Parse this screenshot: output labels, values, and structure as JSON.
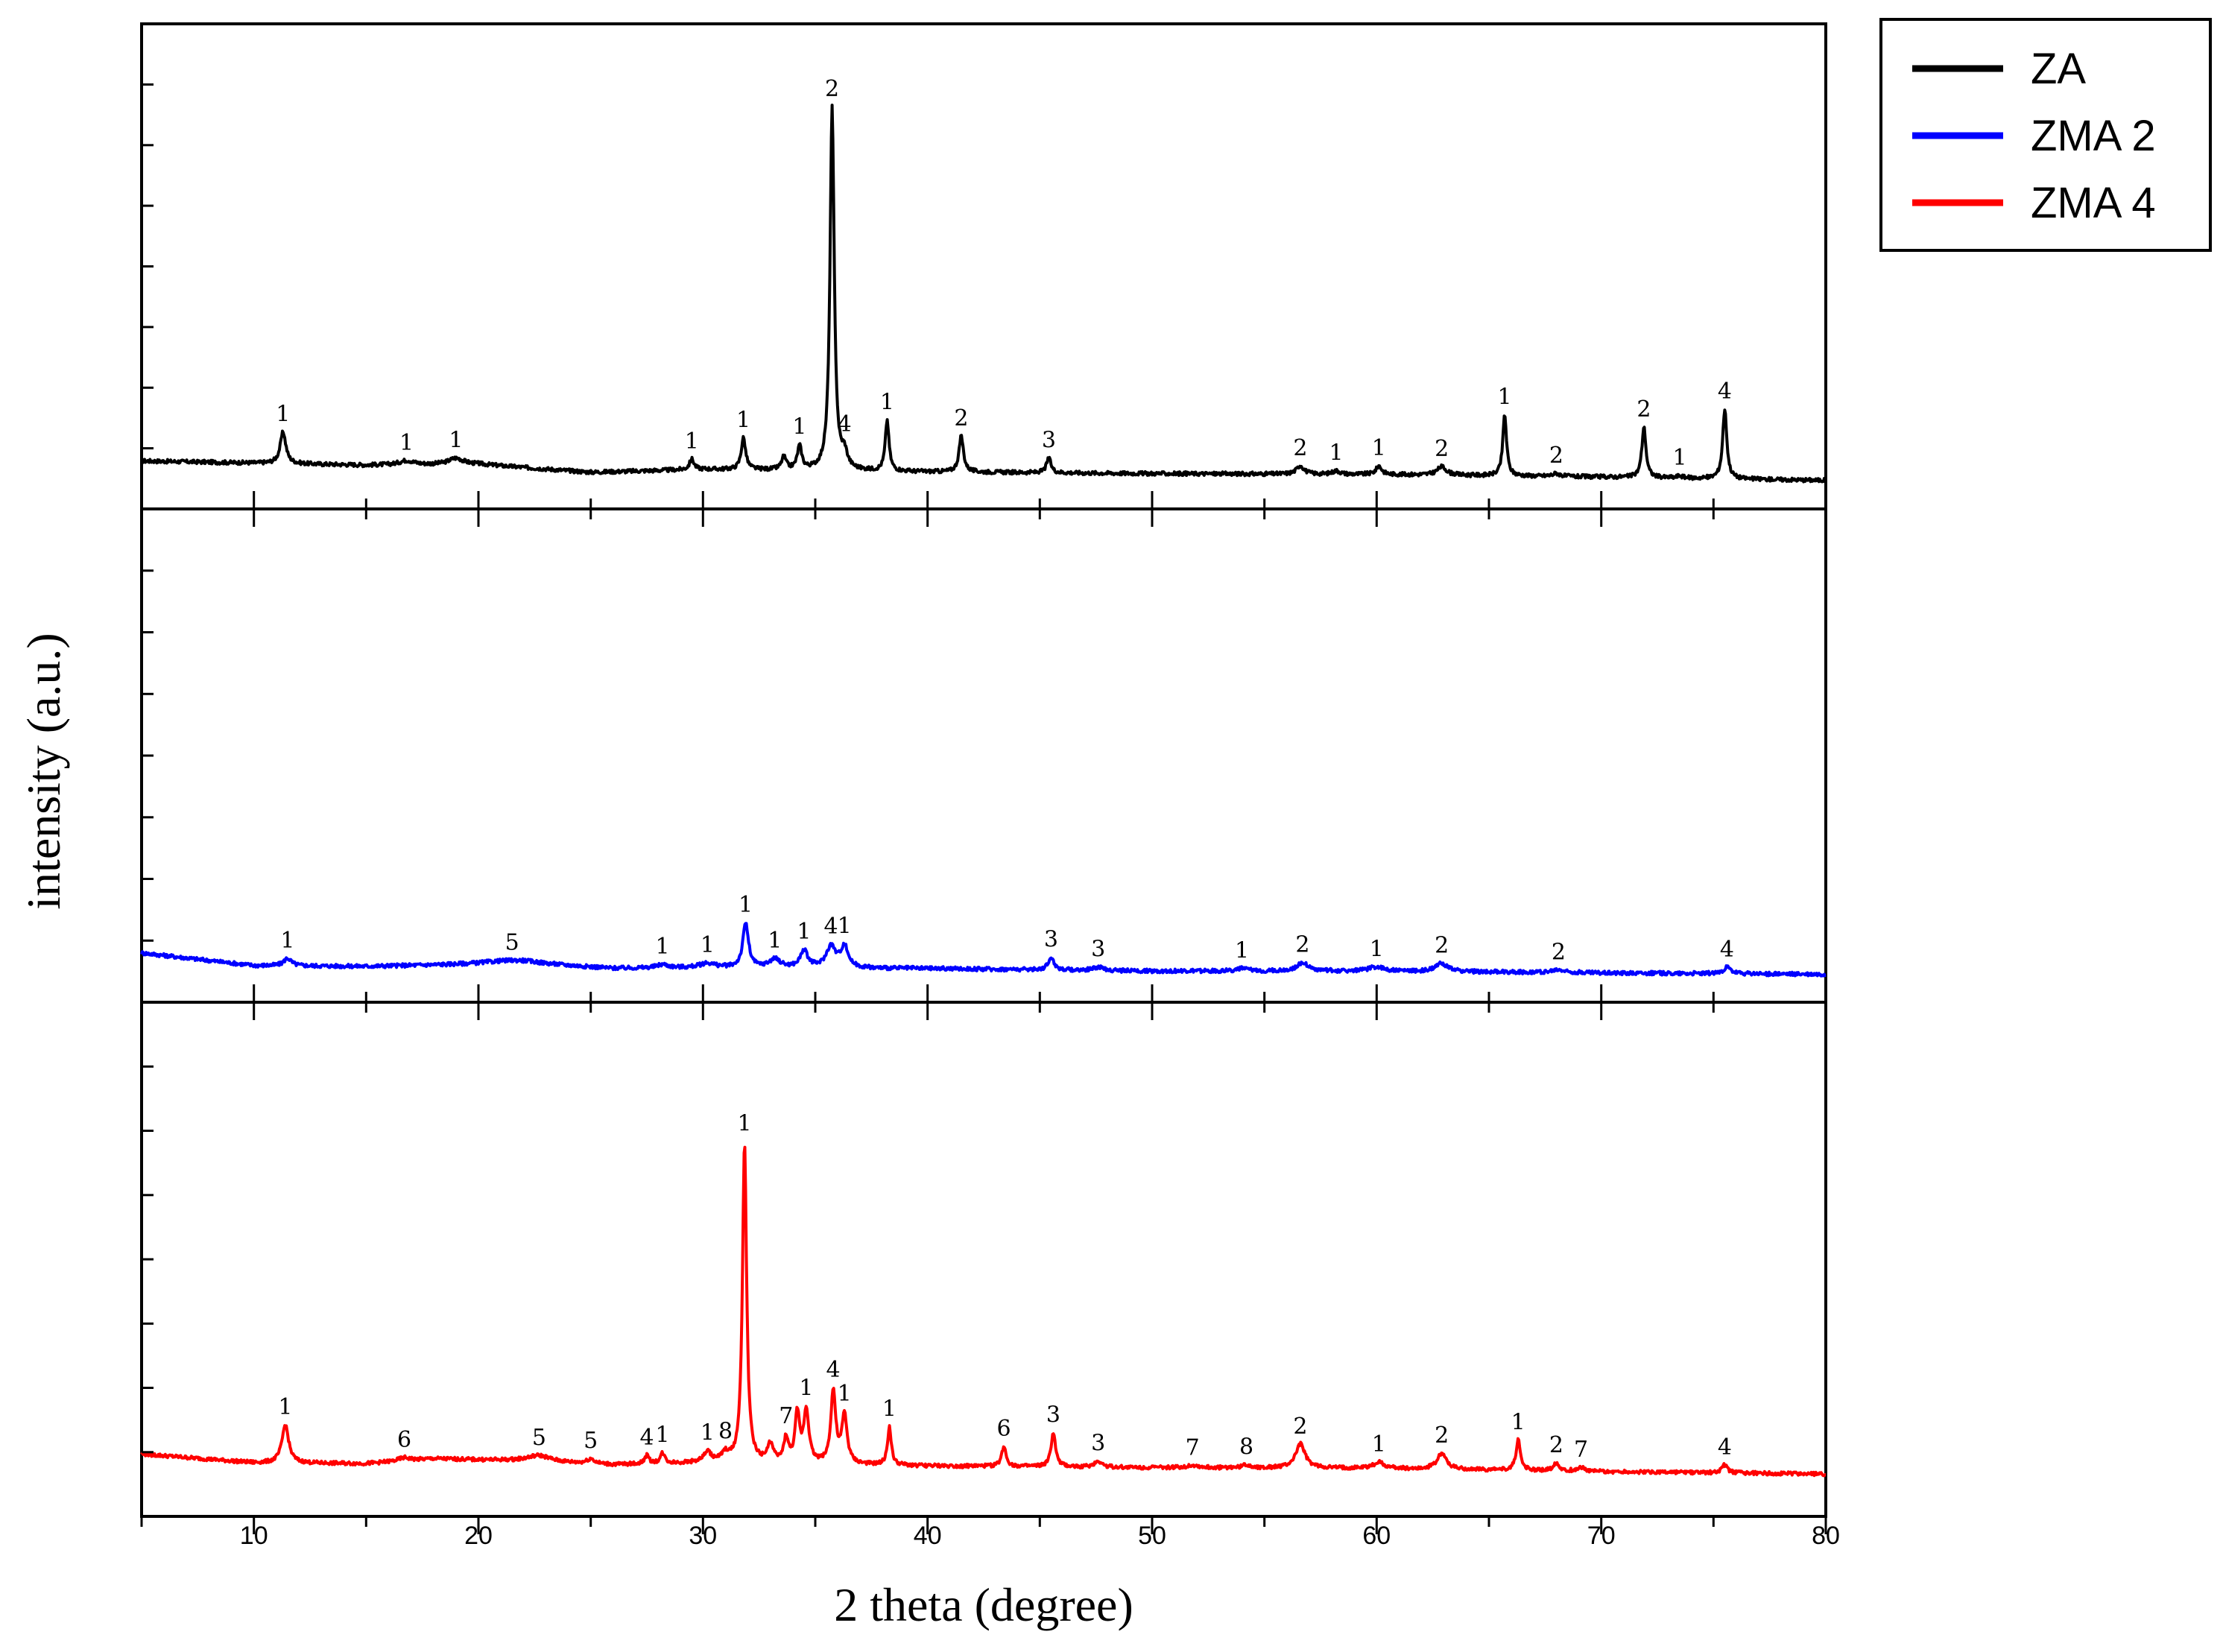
{
  "chart_data": {
    "type": "line",
    "layout": "stacked-panels",
    "xlabel": "2 theta (degree)",
    "ylabel": "intensity (a.u.)",
    "xlim": [
      5,
      80
    ],
    "x_ticks": [
      10,
      20,
      30,
      40,
      50,
      60,
      70,
      80
    ],
    "legend": {
      "position": "top-right",
      "entries": [
        {
          "name": "ZA",
          "color": "#000000"
        },
        {
          "name": "ZMA 2",
          "color": "#0000ff"
        },
        {
          "name": "ZMA 4",
          "color": "#ff0000"
        }
      ]
    },
    "series": [
      {
        "name": "ZA",
        "color": "#000000",
        "panel": "top",
        "ylim": [
          0,
          100
        ],
        "baseline": [
          [
            5,
            5.2
          ],
          [
            15,
            4.2
          ],
          [
            20,
            4.4
          ],
          [
            25,
            2.5
          ],
          [
            30,
            3.2
          ],
          [
            40,
            2.6
          ],
          [
            50,
            2.2
          ],
          [
            60,
            2.0
          ],
          [
            70,
            1.4
          ],
          [
            80,
            0.6
          ]
        ],
        "peaks": [
          {
            "x": 11.3,
            "h": 7.5,
            "w": 0.15,
            "label": "1"
          },
          {
            "x": 16.8,
            "h": 1.0,
            "w": 0.4,
            "label": "1"
          },
          {
            "x": 19.0,
            "h": 1.5,
            "w": 0.4,
            "label": "1"
          },
          {
            "x": 29.5,
            "h": 2.5,
            "w": 0.12,
            "label": "1"
          },
          {
            "x": 31.8,
            "h": 7.5,
            "w": 0.12,
            "label": "1"
          },
          {
            "x": 33.6,
            "h": 3.0,
            "w": 0.12,
            "label": ""
          },
          {
            "x": 34.3,
            "h": 5.5,
            "w": 0.12,
            "label": "1"
          },
          {
            "x": 35.75,
            "h": 86.0,
            "w": 0.11,
            "label": "2"
          },
          {
            "x": 36.3,
            "h": 3.5,
            "w": 0.15,
            "label": "4"
          },
          {
            "x": 38.2,
            "h": 12.0,
            "w": 0.1,
            "label": "1"
          },
          {
            "x": 41.5,
            "h": 8.5,
            "w": 0.12,
            "label": "2"
          },
          {
            "x": 45.4,
            "h": 3.5,
            "w": 0.12,
            "label": "3"
          },
          {
            "x": 56.6,
            "h": 2.0,
            "w": 0.2,
            "label": "2"
          },
          {
            "x": 58.2,
            "h": 0.8,
            "w": 0.2,
            "label": "1"
          },
          {
            "x": 60.1,
            "h": 2.0,
            "w": 0.15,
            "label": "1"
          },
          {
            "x": 62.9,
            "h": 2.0,
            "w": 0.25,
            "label": "2"
          },
          {
            "x": 65.7,
            "h": 14.5,
            "w": 0.1,
            "label": "1"
          },
          {
            "x": 68.0,
            "h": 0.7,
            "w": 0.2,
            "label": "2"
          },
          {
            "x": 71.9,
            "h": 12.0,
            "w": 0.11,
            "label": "2"
          },
          {
            "x": 73.5,
            "h": 0.5,
            "w": 0.15,
            "label": "1"
          },
          {
            "x": 75.5,
            "h": 16.5,
            "w": 0.11,
            "label": "4"
          }
        ]
      },
      {
        "name": "ZMA 2",
        "color": "#0000ff",
        "panel": "middle",
        "ylim": [
          0,
          100
        ],
        "baseline": [
          [
            5,
            5.5
          ],
          [
            10,
            2.5
          ],
          [
            15,
            2.3
          ],
          [
            22,
            3.0
          ],
          [
            26,
            1.8
          ],
          [
            30,
            2.0
          ],
          [
            40,
            1.8
          ],
          [
            50,
            1.2
          ],
          [
            60,
            1.2
          ],
          [
            70,
            0.8
          ],
          [
            80,
            0.4
          ]
        ],
        "peaks": [
          {
            "x": 11.5,
            "h": 1.8,
            "w": 0.2,
            "label": "1"
          },
          {
            "x": 21.5,
            "h": 0.8,
            "w": 1.5,
            "label": "5"
          },
          {
            "x": 28.2,
            "h": 0.8,
            "w": 0.3,
            "label": "1"
          },
          {
            "x": 30.2,
            "h": 1.0,
            "w": 0.4,
            "label": "1"
          },
          {
            "x": 31.9,
            "h": 10.5,
            "w": 0.15,
            "label": "1"
          },
          {
            "x": 33.2,
            "h": 2.0,
            "w": 0.3,
            "label": "1"
          },
          {
            "x": 34.5,
            "h": 4.0,
            "w": 0.2,
            "label": "1"
          },
          {
            "x": 35.7,
            "h": 5.0,
            "w": 0.25,
            "label": "4"
          },
          {
            "x": 36.3,
            "h": 5.0,
            "w": 0.2,
            "label": "1"
          },
          {
            "x": 45.5,
            "h": 3.0,
            "w": 0.15,
            "label": "3"
          },
          {
            "x": 47.6,
            "h": 0.8,
            "w": 0.25,
            "label": "3"
          },
          {
            "x": 54.0,
            "h": 0.6,
            "w": 0.3,
            "label": "1"
          },
          {
            "x": 56.7,
            "h": 2.0,
            "w": 0.3,
            "label": "2"
          },
          {
            "x": 60.0,
            "h": 1.0,
            "w": 0.4,
            "label": "1"
          },
          {
            "x": 62.9,
            "h": 2.0,
            "w": 0.3,
            "label": "2"
          },
          {
            "x": 68.1,
            "h": 0.6,
            "w": 0.3,
            "label": "2"
          },
          {
            "x": 75.6,
            "h": 1.5,
            "w": 0.2,
            "label": "4"
          }
        ]
      },
      {
        "name": "ZMA 4",
        "color": "#ff0000",
        "panel": "bottom",
        "ylim": [
          0,
          100
        ],
        "baseline": [
          [
            5,
            7.2
          ],
          [
            10,
            5.0
          ],
          [
            15,
            4.8
          ],
          [
            18,
            6.0
          ],
          [
            22,
            5.5
          ],
          [
            26,
            4.5
          ],
          [
            30,
            5.0
          ],
          [
            40,
            4.2
          ],
          [
            50,
            3.8
          ],
          [
            60,
            3.6
          ],
          [
            70,
            2.8
          ],
          [
            80,
            2.2
          ]
        ],
        "peaks": [
          {
            "x": 11.4,
            "h": 9.5,
            "w": 0.18,
            "label": "1"
          },
          {
            "x": 16.7,
            "h": 0.8,
            "w": 0.3,
            "label": "6"
          },
          {
            "x": 22.7,
            "h": 1.5,
            "w": 0.6,
            "label": "5"
          },
          {
            "x": 25.0,
            "h": 1.2,
            "w": 0.2,
            "label": "5"
          },
          {
            "x": 27.5,
            "h": 2.0,
            "w": 0.12,
            "label": "4"
          },
          {
            "x": 28.2,
            "h": 2.5,
            "w": 0.12,
            "label": "1"
          },
          {
            "x": 30.2,
            "h": 2.5,
            "w": 0.2,
            "label": "1"
          },
          {
            "x": 31.0,
            "h": 2.0,
            "w": 0.2,
            "label": "8"
          },
          {
            "x": 31.85,
            "h": 80.0,
            "w": 0.11,
            "label": "1"
          },
          {
            "x": 33.0,
            "h": 4.5,
            "w": 0.15,
            "label": ""
          },
          {
            "x": 33.7,
            "h": 6.0,
            "w": 0.12,
            "label": "7"
          },
          {
            "x": 34.2,
            "h": 12.0,
            "w": 0.12,
            "label": ""
          },
          {
            "x": 34.6,
            "h": 13.0,
            "w": 0.14,
            "label": "1"
          },
          {
            "x": 35.8,
            "h": 18.0,
            "w": 0.13,
            "label": "4"
          },
          {
            "x": 36.3,
            "h": 12.0,
            "w": 0.14,
            "label": "1"
          },
          {
            "x": 38.3,
            "h": 9.5,
            "w": 0.1,
            "label": "1"
          },
          {
            "x": 43.4,
            "h": 5.0,
            "w": 0.12,
            "label": "6"
          },
          {
            "x": 45.6,
            "h": 8.5,
            "w": 0.12,
            "label": "3"
          },
          {
            "x": 47.6,
            "h": 1.5,
            "w": 0.2,
            "label": "3"
          },
          {
            "x": 51.8,
            "h": 0.6,
            "w": 0.3,
            "label": "7"
          },
          {
            "x": 54.2,
            "h": 0.7,
            "w": 0.25,
            "label": "8"
          },
          {
            "x": 56.6,
            "h": 6.0,
            "w": 0.25,
            "label": "2"
          },
          {
            "x": 60.1,
            "h": 1.5,
            "w": 0.3,
            "label": "1"
          },
          {
            "x": 62.9,
            "h": 4.0,
            "w": 0.25,
            "label": "2"
          },
          {
            "x": 66.3,
            "h": 7.5,
            "w": 0.12,
            "label": "1"
          },
          {
            "x": 68.0,
            "h": 2.0,
            "w": 0.15,
            "label": "2"
          },
          {
            "x": 69.1,
            "h": 1.0,
            "w": 0.2,
            "label": "7"
          },
          {
            "x": 75.5,
            "h": 2.0,
            "w": 0.15,
            "label": "4"
          }
        ]
      }
    ]
  }
}
